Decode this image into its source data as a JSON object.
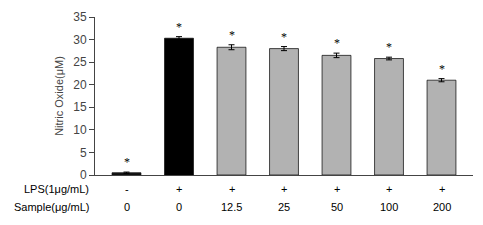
{
  "chart_data": {
    "type": "bar",
    "categories": [
      "0",
      "0",
      "12.5",
      "25",
      "50",
      "100",
      "200"
    ],
    "xlabel": "Sample(μg/mL)",
    "ylabel": "Nitric Oxide(μM)",
    "values": [
      0.5,
      30.3,
      28.3,
      28.0,
      26.5,
      25.8,
      21.0
    ],
    "errors": [
      0.15,
      0.35,
      0.55,
      0.45,
      0.5,
      0.3,
      0.35
    ],
    "colors": [
      "#1a1a1a",
      "#000000",
      "#b2b2b2",
      "#b2b2b2",
      "#b2b2b2",
      "#b2b2b2",
      "#b2b2b2"
    ],
    "edge_color": "#000000",
    "ylim": [
      0,
      35
    ],
    "yticks": [
      0,
      5,
      10,
      15,
      20,
      25,
      30,
      35
    ],
    "grid": false,
    "tick_labels": "y",
    "annotations": [
      {
        "row_label": "LPS(1μg/mL)",
        "labels": [
          "-",
          "+",
          "+",
          "+",
          "+",
          "+",
          "+"
        ]
      },
      {
        "text": "*",
        "category": 0
      },
      {
        "text": "*",
        "category": 1
      },
      {
        "text": "*",
        "category": 2
      },
      {
        "text": "*",
        "category": 3
      },
      {
        "text": "*",
        "category": 4
      },
      {
        "text": "*",
        "category": 5
      },
      {
        "text": "*",
        "category": 6
      }
    ]
  }
}
